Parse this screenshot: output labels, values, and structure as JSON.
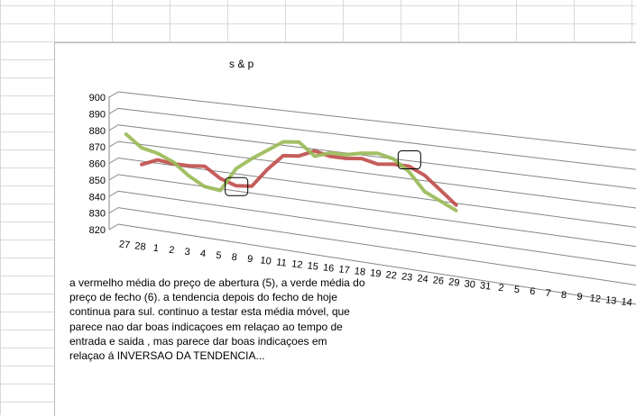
{
  "chart_data": {
    "type": "line",
    "title": "s & p",
    "projection": "3d-perspective",
    "ylim": [
      820,
      900
    ],
    "y_ticks": [
      820,
      830,
      840,
      850,
      860,
      870,
      880,
      890,
      900
    ],
    "grid": true,
    "legend": "none",
    "categories": [
      "27",
      "28",
      "1",
      "2",
      "3",
      "4",
      "5",
      "8",
      "9",
      "10",
      "11",
      "12",
      "15",
      "16",
      "17",
      "18",
      "19",
      "22",
      "23",
      "24",
      "26",
      "29",
      "30",
      "31",
      "2",
      "5",
      "6",
      "7",
      "8",
      "9",
      "12",
      "13",
      "14"
    ],
    "series": [
      {
        "color": "#c0504d",
        "values": [
          null,
          858,
          862,
          861,
          861,
          862,
          856,
          853,
          854,
          865,
          874,
          875,
          879,
          877,
          877,
          878,
          876,
          877,
          877,
          873,
          866,
          859,
          null,
          null,
          null,
          null,
          null,
          null,
          null,
          null,
          null,
          null,
          null
        ]
      },
      {
        "color": "#9bbb59",
        "values": [
          875,
          868,
          866,
          862,
          855,
          850,
          849,
          863,
          870,
          876,
          882,
          883,
          876,
          879,
          879,
          881,
          882,
          880,
          874,
          864,
          860,
          856,
          null,
          null,
          null,
          null,
          null,
          null,
          null,
          null,
          null,
          null,
          null
        ]
      }
    ],
    "markers": [
      {
        "category_index": 7,
        "value": 852
      },
      {
        "category_index": 18,
        "value": 880
      }
    ],
    "annotation": "a vermelho média do preço de abertura (5), a verde média do preço de fecho (6). a tendencia depois do fecho de hoje continua para sul. continuo a testar esta média móvel, que parece nao dar boas indicaçoes em relaçao ao tempo de entrada e saida , mas parece dar boas indicaçoes em relaçao á INVERSAO DA TENDENCIA..."
  }
}
